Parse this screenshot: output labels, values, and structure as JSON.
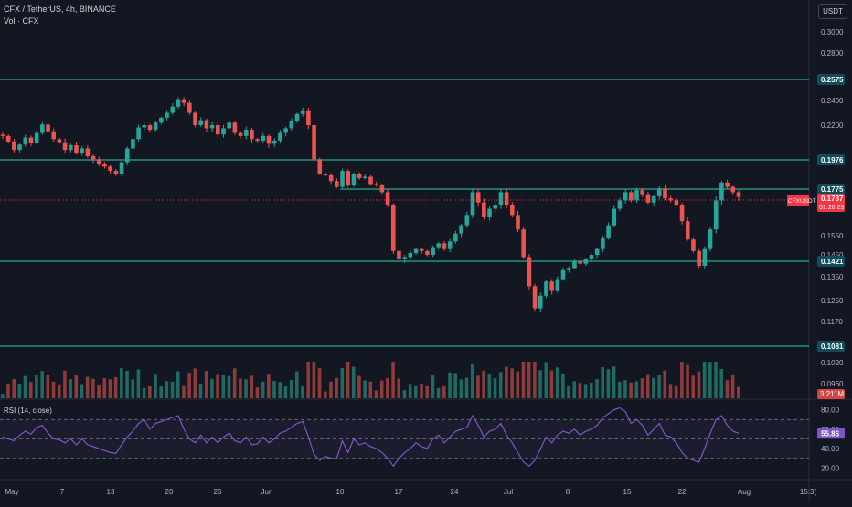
{
  "header": {
    "symbol_line": "CFX / TetherUS, 4h, BINANCE",
    "volume_line": "Vol · CFX",
    "currency_button": "USDT"
  },
  "rsi": {
    "label": "RSI (14, close)",
    "current_value": "55.86",
    "ticks": [
      "80.00",
      "60.00",
      "40.00",
      "20.00"
    ]
  },
  "price_axis": {
    "ticks": [
      "0.3000",
      "0.2800",
      "0.2400",
      "0.2200",
      "0.1550",
      "0.1450",
      "0.1350",
      "0.1250",
      "0.1170",
      "0.1020",
      "0.0960"
    ]
  },
  "time_axis": {
    "labels": [
      "May",
      "7",
      "13",
      "20",
      "26",
      "Jun",
      "10",
      "17",
      "24",
      "Jul",
      "8",
      "15",
      "22",
      "Aug",
      "15:3("
    ]
  },
  "levels": [
    {
      "label": "0.2575",
      "color": "#22ab94"
    },
    {
      "label": "0.1976",
      "color": "#22ab94"
    },
    {
      "label": "0.1775",
      "color": "#22ab94"
    },
    {
      "label": "0.1421",
      "color": "#22ab94"
    },
    {
      "label": "0.1081",
      "color": "#22ab94"
    }
  ],
  "current_price": {
    "symbol": "CFXUSDT",
    "value": "0.1737",
    "countdown": "01:20:23",
    "color": "#f23645"
  },
  "volume_badge": "3.211M",
  "colors": {
    "up": "#26a69a",
    "down": "#ef5350",
    "rsi_line": "#7e57c2",
    "background": "#131722"
  },
  "chart_data": {
    "type": "candlestick",
    "close": [
      0.213,
      0.2095,
      0.204,
      0.2075,
      0.212,
      0.2085,
      0.215,
      0.2205,
      0.216,
      0.211,
      0.209,
      0.204,
      0.207,
      0.202,
      0.205,
      0.2,
      0.198,
      0.1945,
      0.193,
      0.19,
      0.188,
      0.196,
      0.205,
      0.211,
      0.2185,
      0.22,
      0.217,
      0.222,
      0.226,
      0.23,
      0.235,
      0.241,
      0.238,
      0.23,
      0.22,
      0.224,
      0.218,
      0.22,
      0.214,
      0.218,
      0.222,
      0.215,
      0.213,
      0.217,
      0.211,
      0.21,
      0.213,
      0.208,
      0.21,
      0.215,
      0.218,
      0.223,
      0.229,
      0.232,
      0.22,
      0.198,
      0.188,
      0.187,
      0.183,
      0.179,
      0.19,
      0.18,
      0.188,
      0.185,
      0.186,
      0.181,
      0.18,
      0.176,
      0.17,
      0.147,
      0.143,
      0.144,
      0.146,
      0.148,
      0.147,
      0.145,
      0.149,
      0.151,
      0.148,
      0.152,
      0.156,
      0.16,
      0.165,
      0.176,
      0.171,
      0.164,
      0.168,
      0.17,
      0.176,
      0.17,
      0.165,
      0.158,
      0.144,
      0.131,
      0.122,
      0.127,
      0.133,
      0.129,
      0.134,
      0.138,
      0.139,
      0.142,
      0.141,
      0.143,
      0.145,
      0.148,
      0.154,
      0.16,
      0.168,
      0.172,
      0.176,
      0.172,
      0.177,
      0.175,
      0.171,
      0.174,
      0.178,
      0.173,
      0.172,
      0.17,
      0.162,
      0.153,
      0.147,
      0.14,
      0.148,
      0.158,
      0.172,
      0.182,
      0.179,
      0.176,
      0.1737
    ],
    "rsi": [
      52,
      50,
      48,
      54,
      58,
      55,
      62,
      64,
      56,
      50,
      49,
      46,
      50,
      44,
      50,
      44,
      42,
      40,
      38,
      36,
      35,
      44,
      52,
      58,
      66,
      70,
      60,
      66,
      68,
      70,
      72,
      74,
      60,
      50,
      46,
      54,
      46,
      52,
      46,
      52,
      56,
      48,
      46,
      52,
      44,
      45,
      52,
      46,
      50,
      56,
      58,
      62,
      66,
      68,
      52,
      34,
      28,
      32,
      30,
      30,
      48,
      36,
      50,
      44,
      46,
      42,
      40,
      36,
      30,
      22,
      30,
      36,
      40,
      46,
      42,
      40,
      50,
      54,
      46,
      52,
      58,
      60,
      62,
      74,
      64,
      52,
      58,
      60,
      66,
      54,
      46,
      36,
      26,
      22,
      28,
      40,
      52,
      46,
      54,
      58,
      56,
      60,
      54,
      58,
      60,
      64,
      72,
      76,
      80,
      82,
      78,
      66,
      70,
      64,
      54,
      60,
      66,
      54,
      52,
      46,
      36,
      30,
      28,
      26,
      40,
      56,
      70,
      74,
      64,
      58,
      55.86
    ]
  }
}
